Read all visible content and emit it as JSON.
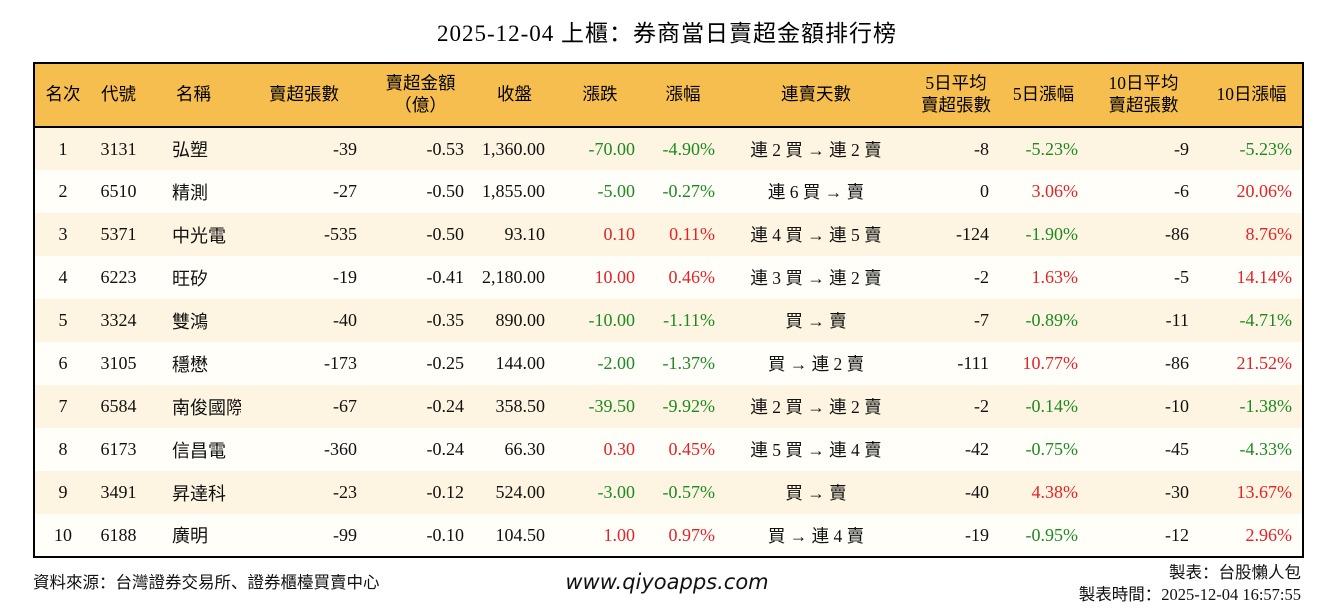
{
  "title": "2025-12-04 上櫃：券商當日賣超金額排行榜",
  "palette": {
    "header_bg": "#F6BE4E",
    "row_odd_bg": "#FDF5E1",
    "row_even_bg": "#FFFEF9",
    "up_red": "#E32328",
    "down_green": "#1E8A23",
    "border": "#000000"
  },
  "table": {
    "columns": [
      {
        "key": "rank",
        "label": "名次"
      },
      {
        "key": "code",
        "label": "代號"
      },
      {
        "key": "name",
        "label": "名稱"
      },
      {
        "key": "svol",
        "label": "賣超張數"
      },
      {
        "key": "samt",
        "label": "賣超金額\n（億）"
      },
      {
        "key": "close",
        "label": "收盤"
      },
      {
        "key": "chg",
        "label": "漲跌"
      },
      {
        "key": "chgp",
        "label": "漲幅"
      },
      {
        "key": "streak",
        "label": "連賣天數"
      },
      {
        "key": "avg5",
        "label": "5日平均\n賣超張數"
      },
      {
        "key": "pct5",
        "label": "5日漲幅"
      },
      {
        "key": "avg10",
        "label": "10日平均\n賣超張數"
      },
      {
        "key": "pct10",
        "label": "10日漲幅"
      }
    ],
    "rows": [
      {
        "rank": "1",
        "code": "3131",
        "name": "弘塑",
        "svol": "-39",
        "samt": "-0.53",
        "close": "1,360.00",
        "chg": "-70.00",
        "chgp": "-4.90%",
        "streak": "連 2 買 → 連 2 賣",
        "avg5": "-8",
        "pct5": "-5.23%",
        "avg10": "-9",
        "pct10": "-5.23%"
      },
      {
        "rank": "2",
        "code": "6510",
        "name": "精測",
        "svol": "-27",
        "samt": "-0.50",
        "close": "1,855.00",
        "chg": "-5.00",
        "chgp": "-0.27%",
        "streak": "連 6 買 → 賣",
        "avg5": "0",
        "pct5": "3.06%",
        "avg10": "-6",
        "pct10": "20.06%"
      },
      {
        "rank": "3",
        "code": "5371",
        "name": "中光電",
        "svol": "-535",
        "samt": "-0.50",
        "close": "93.10",
        "chg": "0.10",
        "chgp": "0.11%",
        "streak": "連 4 買 → 連 5 賣",
        "avg5": "-124",
        "pct5": "-1.90%",
        "avg10": "-86",
        "pct10": "8.76%"
      },
      {
        "rank": "4",
        "code": "6223",
        "name": "旺矽",
        "svol": "-19",
        "samt": "-0.41",
        "close": "2,180.00",
        "chg": "10.00",
        "chgp": "0.46%",
        "streak": "連 3 買 → 連 2 賣",
        "avg5": "-2",
        "pct5": "1.63%",
        "avg10": "-5",
        "pct10": "14.14%"
      },
      {
        "rank": "5",
        "code": "3324",
        "name": "雙鴻",
        "svol": "-40",
        "samt": "-0.35",
        "close": "890.00",
        "chg": "-10.00",
        "chgp": "-1.11%",
        "streak": "買 → 賣",
        "avg5": "-7",
        "pct5": "-0.89%",
        "avg10": "-11",
        "pct10": "-4.71%"
      },
      {
        "rank": "6",
        "code": "3105",
        "name": "穩懋",
        "svol": "-173",
        "samt": "-0.25",
        "close": "144.00",
        "chg": "-2.00",
        "chgp": "-1.37%",
        "streak": "買 → 連 2 賣",
        "avg5": "-111",
        "pct5": "10.77%",
        "avg10": "-86",
        "pct10": "21.52%"
      },
      {
        "rank": "7",
        "code": "6584",
        "name": "南俊國際",
        "svol": "-67",
        "samt": "-0.24",
        "close": "358.50",
        "chg": "-39.50",
        "chgp": "-9.92%",
        "streak": "連 2 買 → 連 2 賣",
        "avg5": "-2",
        "pct5": "-0.14%",
        "avg10": "-10",
        "pct10": "-1.38%"
      },
      {
        "rank": "8",
        "code": "6173",
        "name": "信昌電",
        "svol": "-360",
        "samt": "-0.24",
        "close": "66.30",
        "chg": "0.30",
        "chgp": "0.45%",
        "streak": "連 5 買 → 連 4 賣",
        "avg5": "-42",
        "pct5": "-0.75%",
        "avg10": "-45",
        "pct10": "-4.33%"
      },
      {
        "rank": "9",
        "code": "3491",
        "name": "昇達科",
        "svol": "-23",
        "samt": "-0.12",
        "close": "524.00",
        "chg": "-3.00",
        "chgp": "-0.57%",
        "streak": "買 → 賣",
        "avg5": "-40",
        "pct5": "4.38%",
        "avg10": "-30",
        "pct10": "13.67%"
      },
      {
        "rank": "10",
        "code": "6188",
        "name": "廣明",
        "svol": "-99",
        "samt": "-0.10",
        "close": "104.50",
        "chg": "1.00",
        "chgp": "0.97%",
        "streak": "買 → 連 4 賣",
        "avg5": "-19",
        "pct5": "-0.95%",
        "avg10": "-12",
        "pct10": "2.96%"
      }
    ]
  },
  "footer": {
    "source": "資料來源：台灣證券交易所、證券櫃檯買賣中心",
    "website": "www.qiyoapps.com",
    "maker": "製表：台股懶人包",
    "made_at": "製表時間：2025-12-04 16:57:55"
  }
}
